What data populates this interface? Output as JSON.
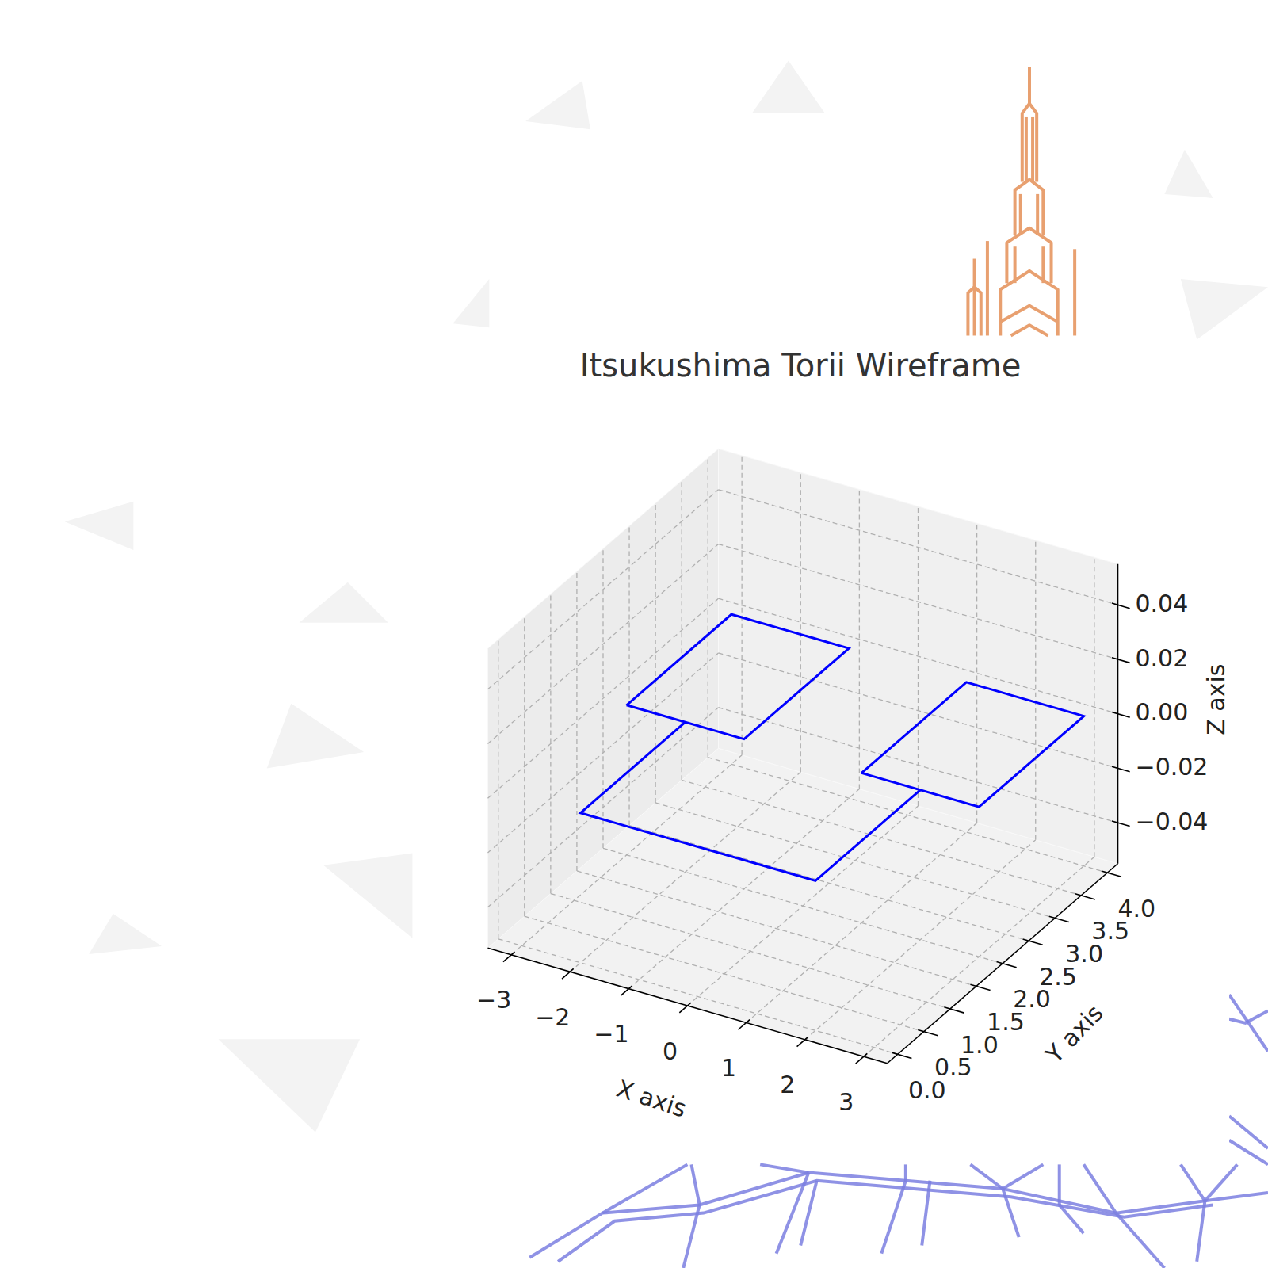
{
  "chart_data": {
    "type": "line3d",
    "title": "Itsukushima Torii Wireframe",
    "x_label": "X axis",
    "y_label": "Y axis",
    "z_label": "Z axis",
    "xlim": [
      -3.4,
      3.4
    ],
    "ylim": [
      -0.2,
      4.2
    ],
    "zlim": [
      -0.055,
      0.055
    ],
    "xticks": [
      {
        "value": -3,
        "label": "−3"
      },
      {
        "value": -2,
        "label": "−2"
      },
      {
        "value": -1,
        "label": "−1"
      },
      0,
      1,
      2,
      3
    ],
    "yticks": [
      {
        "value": 0,
        "label": "0.0"
      },
      0.5,
      {
        "value": 1,
        "label": "1.0"
      },
      1.5,
      {
        "value": 2,
        "label": "2.0"
      },
      2.5,
      {
        "value": 3,
        "label": "3.0"
      },
      3.5,
      {
        "value": 4,
        "label": "4.0"
      }
    ],
    "zticks": [
      {
        "value": -0.04,
        "label": "−0.04"
      },
      {
        "value": -0.02,
        "label": "−0.02"
      },
      {
        "value": 0,
        "label": "0.00"
      },
      0.02,
      0.04
    ],
    "grid": true,
    "series": [
      {
        "color": "#0000ff",
        "x": [
          -3,
          -3,
          -1,
          -1,
          -3
        ],
        "y": [
          2,
          4,
          4,
          2,
          2
        ],
        "z": [
          0,
          0,
          0,
          0,
          0
        ]
      },
      {
        "color": "#0000ff",
        "x": [
          1,
          1,
          3,
          3,
          1
        ],
        "y": [
          2,
          4,
          4,
          2,
          2
        ],
        "z": [
          0,
          0,
          0,
          0,
          0
        ]
      },
      {
        "color": "#0000ff",
        "x": [
          -2,
          -2,
          2,
          2
        ],
        "y": [
          2,
          0,
          0,
          2
        ],
        "z": [
          0,
          0,
          0,
          0
        ]
      }
    ]
  }
}
